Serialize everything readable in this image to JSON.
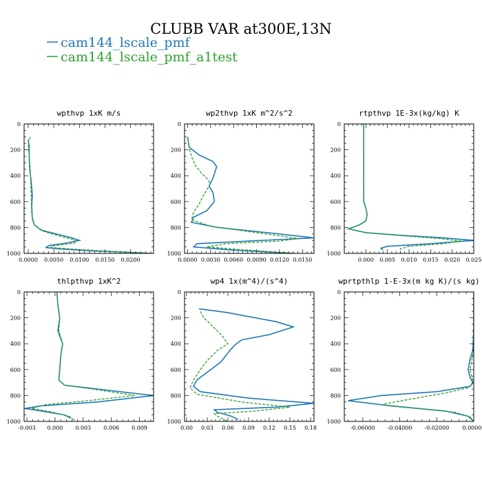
{
  "page": {
    "title": "CLUBB VAR at300E,13N",
    "colors": {
      "series1": "#1f77b4",
      "series2": "#2ca02c"
    }
  },
  "legend": [
    {
      "label": "cam144_lscale_pmf",
      "color": "#1f77b4",
      "dash": "solid"
    },
    {
      "label": "cam144_lscale_pmf_a1test",
      "color": "#2ca02c",
      "dash": "dashed"
    }
  ],
  "chart_data": [
    {
      "type": "line",
      "title": "wpthvp   1xK m/s",
      "xlim": [
        -0.0008,
        0.0245
      ],
      "ylim": [
        0,
        1000
      ],
      "y_reversed": true,
      "xticks": [
        0,
        0.005,
        0.01,
        0.015,
        0.02
      ],
      "xticklabels": [
        "0.0000",
        "0.0050",
        "0.0100",
        "0.0150",
        "0.0200"
      ],
      "yticks": [
        0,
        200,
        400,
        600,
        800,
        1000
      ],
      "series": [
        {
          "name": "cam144_lscale_pmf",
          "x": [
            0,
            0.0002,
            0.0002,
            0.0003,
            0.0006,
            0.0008,
            0.0007,
            0.0008,
            0.0012,
            0.0025,
            0.0055,
            0.0085,
            0.01,
            0.0075,
            0.004,
            0.0035,
            0.006,
            0.012,
            0.02,
            0.024
          ],
          "y": [
            120,
            170,
            250,
            350,
            450,
            550,
            630,
            730,
            780,
            820,
            850,
            880,
            900,
            920,
            940,
            955,
            965,
            980,
            992,
            1000
          ]
        },
        {
          "name": "cam144_lscale_pmf_a1test",
          "x": [
            0.0004,
            0,
            0.0002,
            0.0004,
            0.0005,
            0.0006,
            0.0007,
            0.0012,
            0.003,
            0.006,
            0.0085,
            0.0095,
            0.009,
            0.006,
            0.0045,
            0.0045,
            0.01,
            0.018,
            0.024
          ],
          "y": [
            100,
            150,
            250,
            350,
            450,
            550,
            700,
            780,
            830,
            865,
            890,
            905,
            920,
            935,
            945,
            955,
            970,
            988,
            1000
          ]
        }
      ]
    },
    {
      "type": "line",
      "title": "wp2thvp   1xK m^2/s^2",
      "xlim": [
        -0.0004,
        0.0165
      ],
      "ylim": [
        0,
        1000
      ],
      "y_reversed": true,
      "xticks": [
        0,
        0.003,
        0.006,
        0.009,
        0.012,
        0.015
      ],
      "xticklabels": [
        "0.0000",
        "0.0030",
        "0.0060",
        "0.0090",
        "0.0120",
        "0.0150"
      ],
      "yticks": [
        0,
        200,
        400,
        600,
        800,
        1000
      ],
      "series": [
        {
          "name": "cam144_lscale_pmf",
          "x": [
            0,
            0.0002,
            0.0015,
            0.0033,
            0.0038,
            0.0033,
            0.0028,
            0.0033,
            0.0035,
            0.0025,
            0.0008,
            0.0005,
            0.004,
            0.012,
            0.0165,
            0.008,
            0.0012,
            0.0008,
            0.006,
            0.014
          ],
          "y": [
            100,
            180,
            240,
            290,
            330,
            420,
            480,
            530,
            600,
            670,
            720,
            760,
            800,
            850,
            880,
            905,
            925,
            950,
            975,
            1000
          ]
        },
        {
          "name": "cam144_lscale_pmf_a1test",
          "x": [
            0,
            0.0002,
            0.0005,
            0.001,
            0.0018,
            0.0025,
            0.003,
            0.002,
            0.0015,
            0.0008,
            0.0005,
            0.003,
            0.009,
            0.0145,
            0.012,
            0.005,
            0.0025,
            0.008,
            0.014
          ],
          "y": [
            100,
            180,
            250,
            320,
            380,
            420,
            460,
            560,
            620,
            680,
            740,
            790,
            840,
            885,
            905,
            925,
            950,
            975,
            1000
          ]
        }
      ]
    },
    {
      "type": "line",
      "title": "rtpthvp   1E-3x(kg/kg) K",
      "xlim": [
        -0.005,
        0.025
      ],
      "ylim": [
        0,
        1000
      ],
      "y_reversed": true,
      "xticks": [
        0,
        0.005,
        0.01,
        0.015,
        0.02,
        0.025
      ],
      "xticklabels": [
        "0.000",
        "0.005",
        "0.010",
        "0.015",
        "0.020",
        "0.025"
      ],
      "yticks": [
        0,
        200,
        400,
        600,
        800,
        1000
      ],
      "series": [
        {
          "name": "cam144_lscale_pmf",
          "x": [
            -0.0005,
            -0.0005,
            -0.0005,
            -0.0005,
            0,
            0.0003,
            0,
            -0.0015,
            -0.004,
            0,
            0.008,
            0.018,
            0.025,
            0.015,
            0.005,
            0.0035,
            0.004
          ],
          "y": [
            0,
            200,
            400,
            600,
            650,
            700,
            750,
            780,
            810,
            840,
            860,
            880,
            900,
            925,
            945,
            960,
            975
          ]
        },
        {
          "name": "cam144_lscale_pmf_a1test",
          "x": [
            -0.0005,
            -0.0005,
            -0.0005,
            -0.0005,
            0,
            0.0003,
            0,
            -0.0015,
            -0.004,
            0,
            0.009,
            0.017,
            0.022,
            0.018,
            0.01,
            0.008,
            0.008
          ],
          "y": [
            0,
            200,
            400,
            600,
            650,
            700,
            750,
            780,
            810,
            840,
            865,
            885,
            905,
            925,
            945,
            965,
            1000
          ]
        }
      ]
    },
    {
      "type": "line",
      "title": "thlpthvp   1xK^2",
      "xlim": [
        -0.0033,
        0.0105
      ],
      "ylim": [
        0,
        1000
      ],
      "y_reversed": true,
      "xticks": [
        -0.003,
        0,
        0.003,
        0.006,
        0.009
      ],
      "xticklabels": [
        "-0.003",
        "0.000",
        "0.003",
        "0.006",
        "0.009"
      ],
      "yticks": [
        0,
        200,
        400,
        600,
        800,
        1000
      ],
      "series": [
        {
          "name": "cam144_lscale_pmf",
          "x": [
            0.0002,
            0.0003,
            0.0005,
            0.0003,
            0.0008,
            0.0006,
            0.0005,
            0.0004,
            0.001,
            0.0045,
            0.0105,
            0.0045,
            -0.0015,
            -0.0032,
            -0.001,
            0.001,
            0.0017
          ],
          "y": [
            0,
            100,
            200,
            300,
            400,
            500,
            600,
            680,
            720,
            750,
            800,
            850,
            880,
            900,
            925,
            950,
            975
          ]
        },
        {
          "name": "cam144_lscale_pmf_a1test",
          "x": [
            0.0002,
            0.0003,
            0.0005,
            0.0004,
            0.0008,
            0.0006,
            0.0005,
            0.0004,
            0.001,
            0.004,
            0.0085,
            0.0035,
            -0.001,
            -0.0025,
            -0.0005,
            0.0015,
            0.0022
          ],
          "y": [
            0,
            100,
            200,
            300,
            400,
            500,
            600,
            680,
            720,
            750,
            800,
            840,
            870,
            900,
            925,
            960,
            1000
          ]
        }
      ]
    },
    {
      "type": "line",
      "title": "wp4   1x(m^4)/(s^4)",
      "xlim": [
        -0.003,
        0.185
      ],
      "ylim": [
        0,
        1000
      ],
      "y_reversed": true,
      "xticks": [
        0,
        0.03,
        0.06,
        0.09,
        0.12,
        0.15,
        0.18
      ],
      "xticklabels": [
        "0.00",
        "0.03",
        "0.06",
        "0.09",
        "0.12",
        "0.15",
        "0.18"
      ],
      "yticks": [
        0,
        200,
        400,
        600,
        800,
        1000
      ],
      "series": [
        {
          "name": "cam144_lscale_pmf",
          "x": [
            0.018,
            0.06,
            0.13,
            0.155,
            0.12,
            0.08,
            0.07,
            0.06,
            0.05,
            0.03,
            0.015,
            0.01,
            0.02,
            0.09,
            0.185,
            0.13,
            0.04,
            0.045,
            0.065,
            0.075
          ],
          "y": [
            130,
            160,
            230,
            270,
            330,
            370,
            410,
            470,
            540,
            620,
            680,
            730,
            770,
            820,
            860,
            890,
            910,
            930,
            960,
            985
          ]
        },
        {
          "name": "cam144_lscale_pmf_a1test",
          "x": [
            0.02,
            0.025,
            0.035,
            0.05,
            0.06,
            0.045,
            0.03,
            0.02,
            0.01,
            0.005,
            0.015,
            0.08,
            0.15,
            0.1,
            0.04,
            0.045,
            0.06
          ],
          "y": [
            150,
            200,
            250,
            330,
            400,
            450,
            530,
            600,
            680,
            740,
            790,
            850,
            890,
            920,
            940,
            960,
            1000
          ]
        }
      ]
    },
    {
      "type": "line",
      "title": "wprtpthlp   1-E-3x(m kg K)/(s kg)",
      "xlim": [
        -0.07,
        0
      ],
      "ylim": [
        0,
        1000
      ],
      "y_reversed": true,
      "xticks": [
        -0.06,
        -0.04,
        -0.02,
        0
      ],
      "xticklabels": [
        "-0.06000",
        "-0.04000",
        "-0.02000",
        "0.00000"
      ],
      "yticks": [
        0,
        200,
        400,
        600,
        800,
        1000
      ],
      "series": [
        {
          "name": "cam144_lscale_pmf",
          "x": [
            0,
            0,
            -0.0005,
            -0.002,
            -0.003,
            -0.002,
            -0.0005,
            -0.002,
            -0.02,
            -0.05,
            -0.068,
            -0.045,
            -0.015,
            -0.003,
            0
          ],
          "y": [
            0,
            300,
            450,
            520,
            600,
            660,
            700,
            730,
            770,
            800,
            840,
            880,
            920,
            960,
            1000
          ]
        },
        {
          "name": "cam144_lscale_pmf_a1test",
          "x": [
            0,
            0,
            0,
            -0.001,
            -0.002,
            -0.001,
            0,
            -0.003,
            -0.015,
            -0.035,
            -0.05,
            -0.03,
            -0.01,
            -0.002,
            0
          ],
          "y": [
            0,
            300,
            450,
            520,
            600,
            660,
            700,
            740,
            780,
            830,
            870,
            900,
            930,
            965,
            1000
          ]
        }
      ]
    }
  ]
}
